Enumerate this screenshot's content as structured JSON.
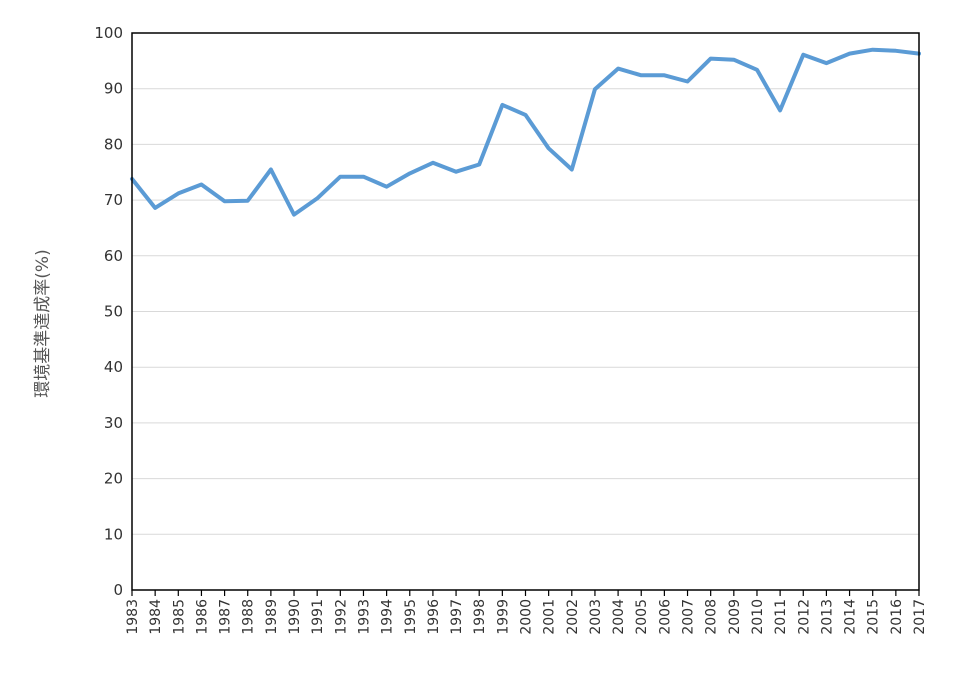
{
  "chart_data": {
    "type": "line",
    "title": "",
    "xlabel": "",
    "ylabel": "環境基準達成率(%)",
    "ylim": [
      0,
      100
    ],
    "yticks": [
      0,
      10,
      20,
      30,
      40,
      50,
      60,
      70,
      80,
      90,
      100
    ],
    "grid": true,
    "line_color": "#5b9bd5",
    "x": [
      "1983",
      "1984",
      "1985",
      "1986",
      "1987",
      "1988",
      "1989",
      "1990",
      "1991",
      "1992",
      "1993",
      "1994",
      "1995",
      "1996",
      "1997",
      "1998",
      "1999",
      "2000",
      "2001",
      "2002",
      "2003",
      "2004",
      "2005",
      "2006",
      "2007",
      "2008",
      "2009",
      "2010",
      "2011",
      "2012",
      "2013",
      "2014",
      "2015",
      "2016",
      "2017"
    ],
    "series": [
      {
        "values": [
          73.8,
          68.6,
          71.2,
          72.8,
          69.8,
          69.9,
          75.5,
          67.4,
          70.3,
          74.2,
          74.2,
          72.4,
          74.8,
          76.7,
          75.1,
          76.4,
          87.1,
          85.3,
          79.3,
          75.5,
          89.9,
          93.6,
          92.4,
          92.4,
          91.3,
          95.4,
          95.2,
          93.4,
          86.1,
          96.1,
          94.6,
          96.3,
          97.0,
          96.8,
          96.3
        ]
      }
    ]
  }
}
